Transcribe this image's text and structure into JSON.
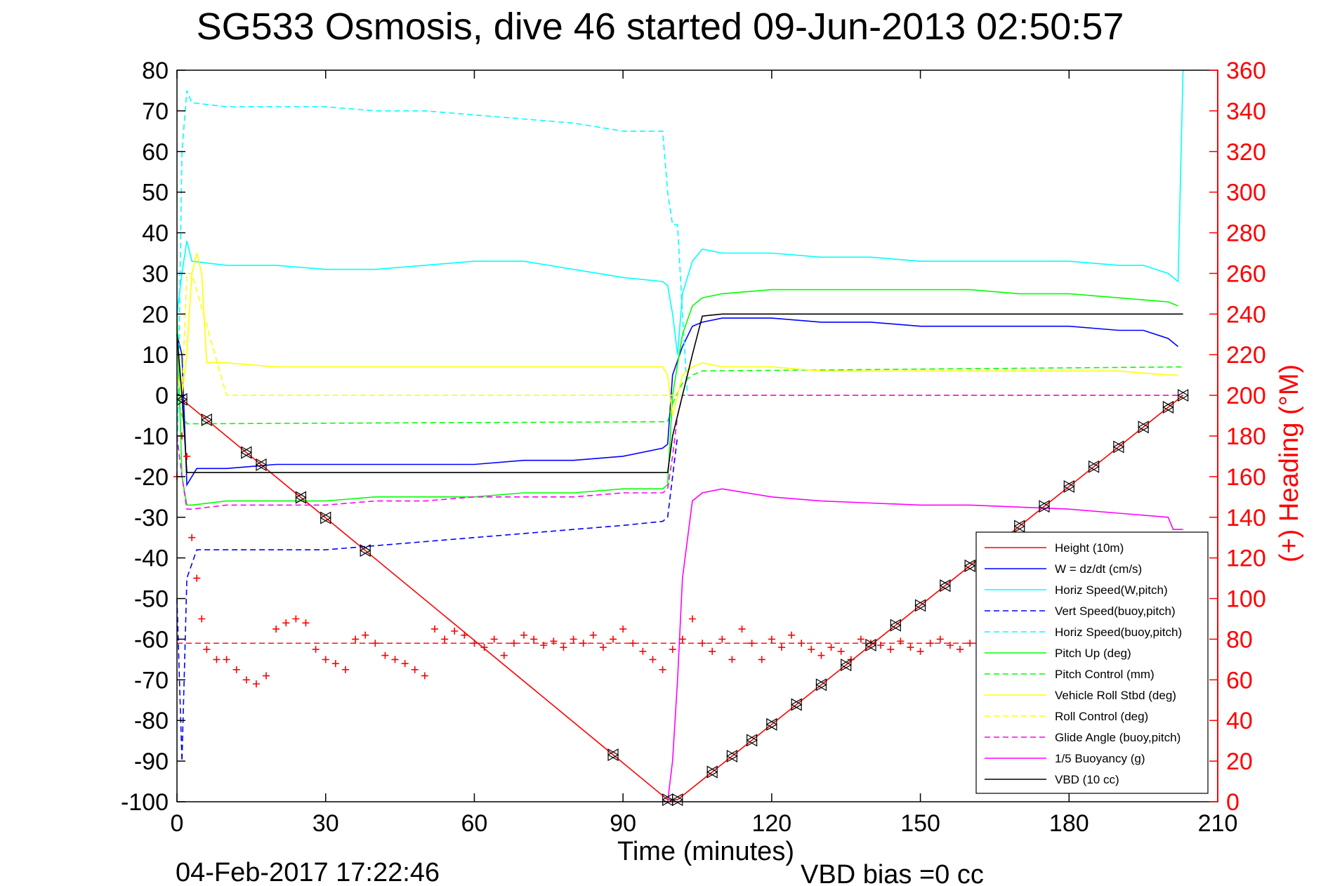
{
  "chart_data": {
    "type": "line",
    "title": "SG533 Osmosis, dive 46 started 09-Jun-2013 02:50:57",
    "xlabel": "Time (minutes)",
    "ylabel": "",
    "y2label": "(+) Heading (°M)",
    "xlim": [
      0,
      210
    ],
    "ylim": [
      -100,
      80
    ],
    "y2lim": [
      0,
      360
    ],
    "xticks": [
      0,
      30,
      60,
      90,
      120,
      150,
      180,
      210
    ],
    "yticks": [
      -100,
      -90,
      -80,
      -70,
      -60,
      -50,
      -40,
      -30,
      -20,
      -10,
      0,
      10,
      20,
      30,
      40,
      50,
      60,
      70,
      80
    ],
    "y2ticks": [
      0,
      20,
      40,
      60,
      80,
      100,
      120,
      140,
      160,
      180,
      200,
      220,
      240,
      260,
      280,
      300,
      320,
      340,
      360
    ],
    "grid": false,
    "legend_position": "bottom-right",
    "footer_date": "04-Feb-2017 17:22:46",
    "footer_bias": "VBD bias =0 cc",
    "series": [
      {
        "name": "Height (10m)",
        "color": "#ff0000",
        "style": "solid",
        "x": [
          0,
          1,
          99,
          101,
          203
        ],
        "y": [
          -1,
          -1,
          -99.5,
          -99.5,
          0
        ]
      },
      {
        "name": "W = dz/dt (cm/s)",
        "color": "#0000ff",
        "style": "solid",
        "x": [
          0,
          1,
          2,
          4,
          10,
          20,
          30,
          40,
          50,
          60,
          70,
          80,
          90,
          98,
          99,
          100,
          102,
          104,
          106,
          110,
          120,
          130,
          140,
          150,
          160,
          170,
          180,
          190,
          195,
          200,
          202
        ],
        "y": [
          15,
          10,
          -22,
          -18,
          -18,
          -17,
          -17,
          -17,
          -17,
          -17,
          -16,
          -16,
          -15,
          -13,
          -12,
          5,
          12,
          17,
          18,
          19,
          19,
          18,
          18,
          17,
          17,
          17,
          17,
          16,
          16,
          14,
          12
        ]
      },
      {
        "name": "Horiz Speed(W,pitch)",
        "color": "#00ffff",
        "style": "solid",
        "x": [
          0,
          1,
          2,
          3,
          10,
          20,
          30,
          40,
          50,
          60,
          70,
          80,
          90,
          98,
          99,
          100,
          101,
          102,
          104,
          106,
          110,
          120,
          130,
          140,
          150,
          160,
          170,
          180,
          190,
          195,
          200,
          202,
          203
        ],
        "y": [
          20,
          30,
          38,
          33,
          32,
          32,
          31,
          31,
          32,
          33,
          33,
          31,
          29,
          28,
          27,
          20,
          10,
          25,
          33,
          36,
          35,
          35,
          34,
          34,
          33,
          33,
          33,
          33,
          32,
          32,
          30,
          28,
          80
        ]
      },
      {
        "name": "Vert Speed(buoy,pitch)",
        "color": "#0000ff",
        "style": "dashed",
        "x": [
          0,
          1,
          2,
          4,
          10,
          20,
          30,
          40,
          50,
          60,
          70,
          80,
          90,
          98,
          99,
          100,
          101
        ],
        "y": [
          -50,
          -90,
          -45,
          -38,
          -38,
          -38,
          -38,
          -37,
          -36,
          -35,
          -34,
          -33,
          -32,
          -31,
          -30,
          -20,
          -10
        ]
      },
      {
        "name": "Horiz Speed(buoy,pitch)",
        "color": "#00ffff",
        "style": "dashed",
        "x": [
          0,
          1,
          2,
          3,
          10,
          20,
          30,
          40,
          50,
          60,
          70,
          80,
          90,
          98,
          99,
          100,
          101,
          102,
          103
        ],
        "y": [
          -20,
          60,
          75,
          72,
          71,
          71,
          71,
          70,
          70,
          69,
          68,
          67,
          65,
          65,
          50,
          42,
          42,
          20,
          0
        ]
      },
      {
        "name": "Pitch Up (deg)",
        "color": "#00ff00",
        "style": "solid",
        "x": [
          0,
          1,
          2,
          3,
          10,
          20,
          30,
          40,
          50,
          60,
          70,
          80,
          90,
          98,
          99,
          100,
          102,
          104,
          106,
          110,
          120,
          130,
          140,
          150,
          160,
          170,
          180,
          190,
          200,
          202
        ],
        "y": [
          20,
          -20,
          -27,
          -27,
          -26,
          -26,
          -26,
          -25,
          -25,
          -25,
          -24,
          -24,
          -23,
          -23,
          -22,
          0,
          15,
          22,
          24,
          25,
          26,
          26,
          26,
          26,
          26,
          25,
          25,
          24,
          23,
          22
        ]
      },
      {
        "name": "Pitch Control (mm)",
        "color": "#00ff00",
        "style": "dashed",
        "x": [
          0,
          1,
          2,
          3,
          99,
          100,
          102,
          104,
          106,
          203
        ],
        "y": [
          0,
          -5,
          -7,
          -7,
          -6.5,
          -2,
          3,
          5,
          6,
          7
        ]
      },
      {
        "name": "Vehicle Roll Stbd (deg)",
        "color": "#ffff00",
        "style": "solid",
        "x": [
          0,
          1,
          2,
          3,
          4,
          5,
          6,
          7,
          10,
          20,
          30,
          40,
          50,
          60,
          70,
          80,
          90,
          98,
          99,
          100,
          101,
          102,
          104,
          106,
          110,
          120,
          130,
          140,
          150,
          160,
          170,
          180,
          190,
          200,
          202
        ],
        "y": [
          5,
          0,
          10,
          30,
          35,
          30,
          8,
          8,
          8,
          7,
          7,
          7,
          7,
          7,
          7,
          7,
          7,
          7,
          5,
          -5,
          0,
          5,
          7,
          8,
          7,
          7,
          6,
          6,
          6,
          6,
          6,
          6,
          6,
          5,
          5
        ]
      },
      {
        "name": "Roll Control (deg)",
        "color": "#ffff00",
        "style": "dashed",
        "x": [
          0,
          1,
          2,
          3,
          10,
          20,
          30,
          40,
          50,
          60,
          70,
          80,
          90,
          98,
          99,
          100,
          102,
          104,
          106,
          110,
          120,
          130,
          140,
          150,
          160,
          170,
          180,
          190,
          200,
          202
        ],
        "y": [
          0,
          0,
          30,
          30,
          0,
          0,
          0,
          0,
          0,
          0,
          0,
          0,
          0,
          0,
          0,
          0,
          0,
          0,
          0,
          0,
          0,
          0,
          0,
          0,
          0,
          0,
          0,
          0,
          0,
          0
        ]
      },
      {
        "name": "Glide Angle (buoy,pitch)",
        "color": "#ff00ff",
        "style": "dashed",
        "x": [
          0,
          1,
          2,
          3,
          10,
          20,
          30,
          40,
          50,
          60,
          70,
          80,
          90,
          98,
          99,
          100,
          101,
          102,
          104,
          106,
          203
        ],
        "y": [
          -10,
          -20,
          -28,
          -28,
          -27,
          -27,
          -27,
          -26,
          -26,
          -25,
          -25,
          -25,
          -24,
          -24,
          -23,
          -15,
          -5,
          0,
          0,
          0,
          0
        ]
      },
      {
        "name": "1/5 Buoyancy (g)",
        "color": "#ff00ff",
        "style": "solid",
        "x": [
          98,
          99,
          100,
          101,
          102,
          104,
          106,
          110,
          120,
          130,
          140,
          150,
          160,
          170,
          180,
          190,
          200,
          201,
          203
        ],
        "y": [
          -100,
          -100,
          -90,
          -70,
          -45,
          -26,
          -24,
          -23,
          -25,
          -26,
          -26.5,
          -27,
          -27,
          -27.5,
          -28,
          -29,
          -30,
          -33,
          -33
        ]
      },
      {
        "name": "VBD (10 cc)",
        "color": "#000000",
        "style": "solid",
        "x": [
          0,
          1,
          2,
          3,
          99,
          100,
          102,
          104,
          106,
          110,
          203
        ],
        "y": [
          15,
          0,
          -19,
          -19,
          -19,
          -10,
          0,
          10,
          19.5,
          20,
          20
        ]
      }
    ],
    "heading_series": {
      "color": "#ff0000",
      "marker": "+",
      "axis": "right",
      "mean": 78,
      "x": [
        0,
        1,
        2,
        3,
        4,
        5,
        6,
        8,
        10,
        12,
        14,
        16,
        18,
        20,
        22,
        24,
        26,
        28,
        30,
        32,
        34,
        36,
        38,
        40,
        42,
        44,
        46,
        48,
        50,
        52,
        54,
        56,
        58,
        60,
        62,
        64,
        66,
        68,
        70,
        72,
        74,
        76,
        78,
        80,
        82,
        84,
        86,
        88,
        90,
        92,
        94,
        96,
        98,
        100,
        102,
        104,
        106,
        108,
        110,
        112,
        114,
        116,
        118,
        120,
        122,
        124,
        126,
        128,
        130,
        132,
        134,
        136,
        138,
        140,
        142,
        144,
        146,
        148,
        150,
        152,
        154,
        156,
        158,
        160
      ],
      "y": [
        160,
        180,
        170,
        130,
        110,
        90,
        75,
        70,
        70,
        65,
        60,
        58,
        62,
        85,
        88,
        90,
        88,
        75,
        70,
        68,
        65,
        80,
        82,
        78,
        72,
        70,
        68,
        65,
        62,
        85,
        80,
        84,
        82,
        78,
        76,
        80,
        72,
        78,
        82,
        80,
        77,
        79,
        76,
        80,
        78,
        82,
        76,
        80,
        85,
        78,
        74,
        70,
        65,
        75,
        80,
        90,
        78,
        74,
        80,
        70,
        85,
        78,
        70,
        80,
        76,
        82,
        78,
        75,
        72,
        76,
        74,
        70,
        80,
        78,
        77,
        75,
        79,
        76,
        74,
        78,
        80,
        77,
        75,
        78
      ]
    }
  }
}
